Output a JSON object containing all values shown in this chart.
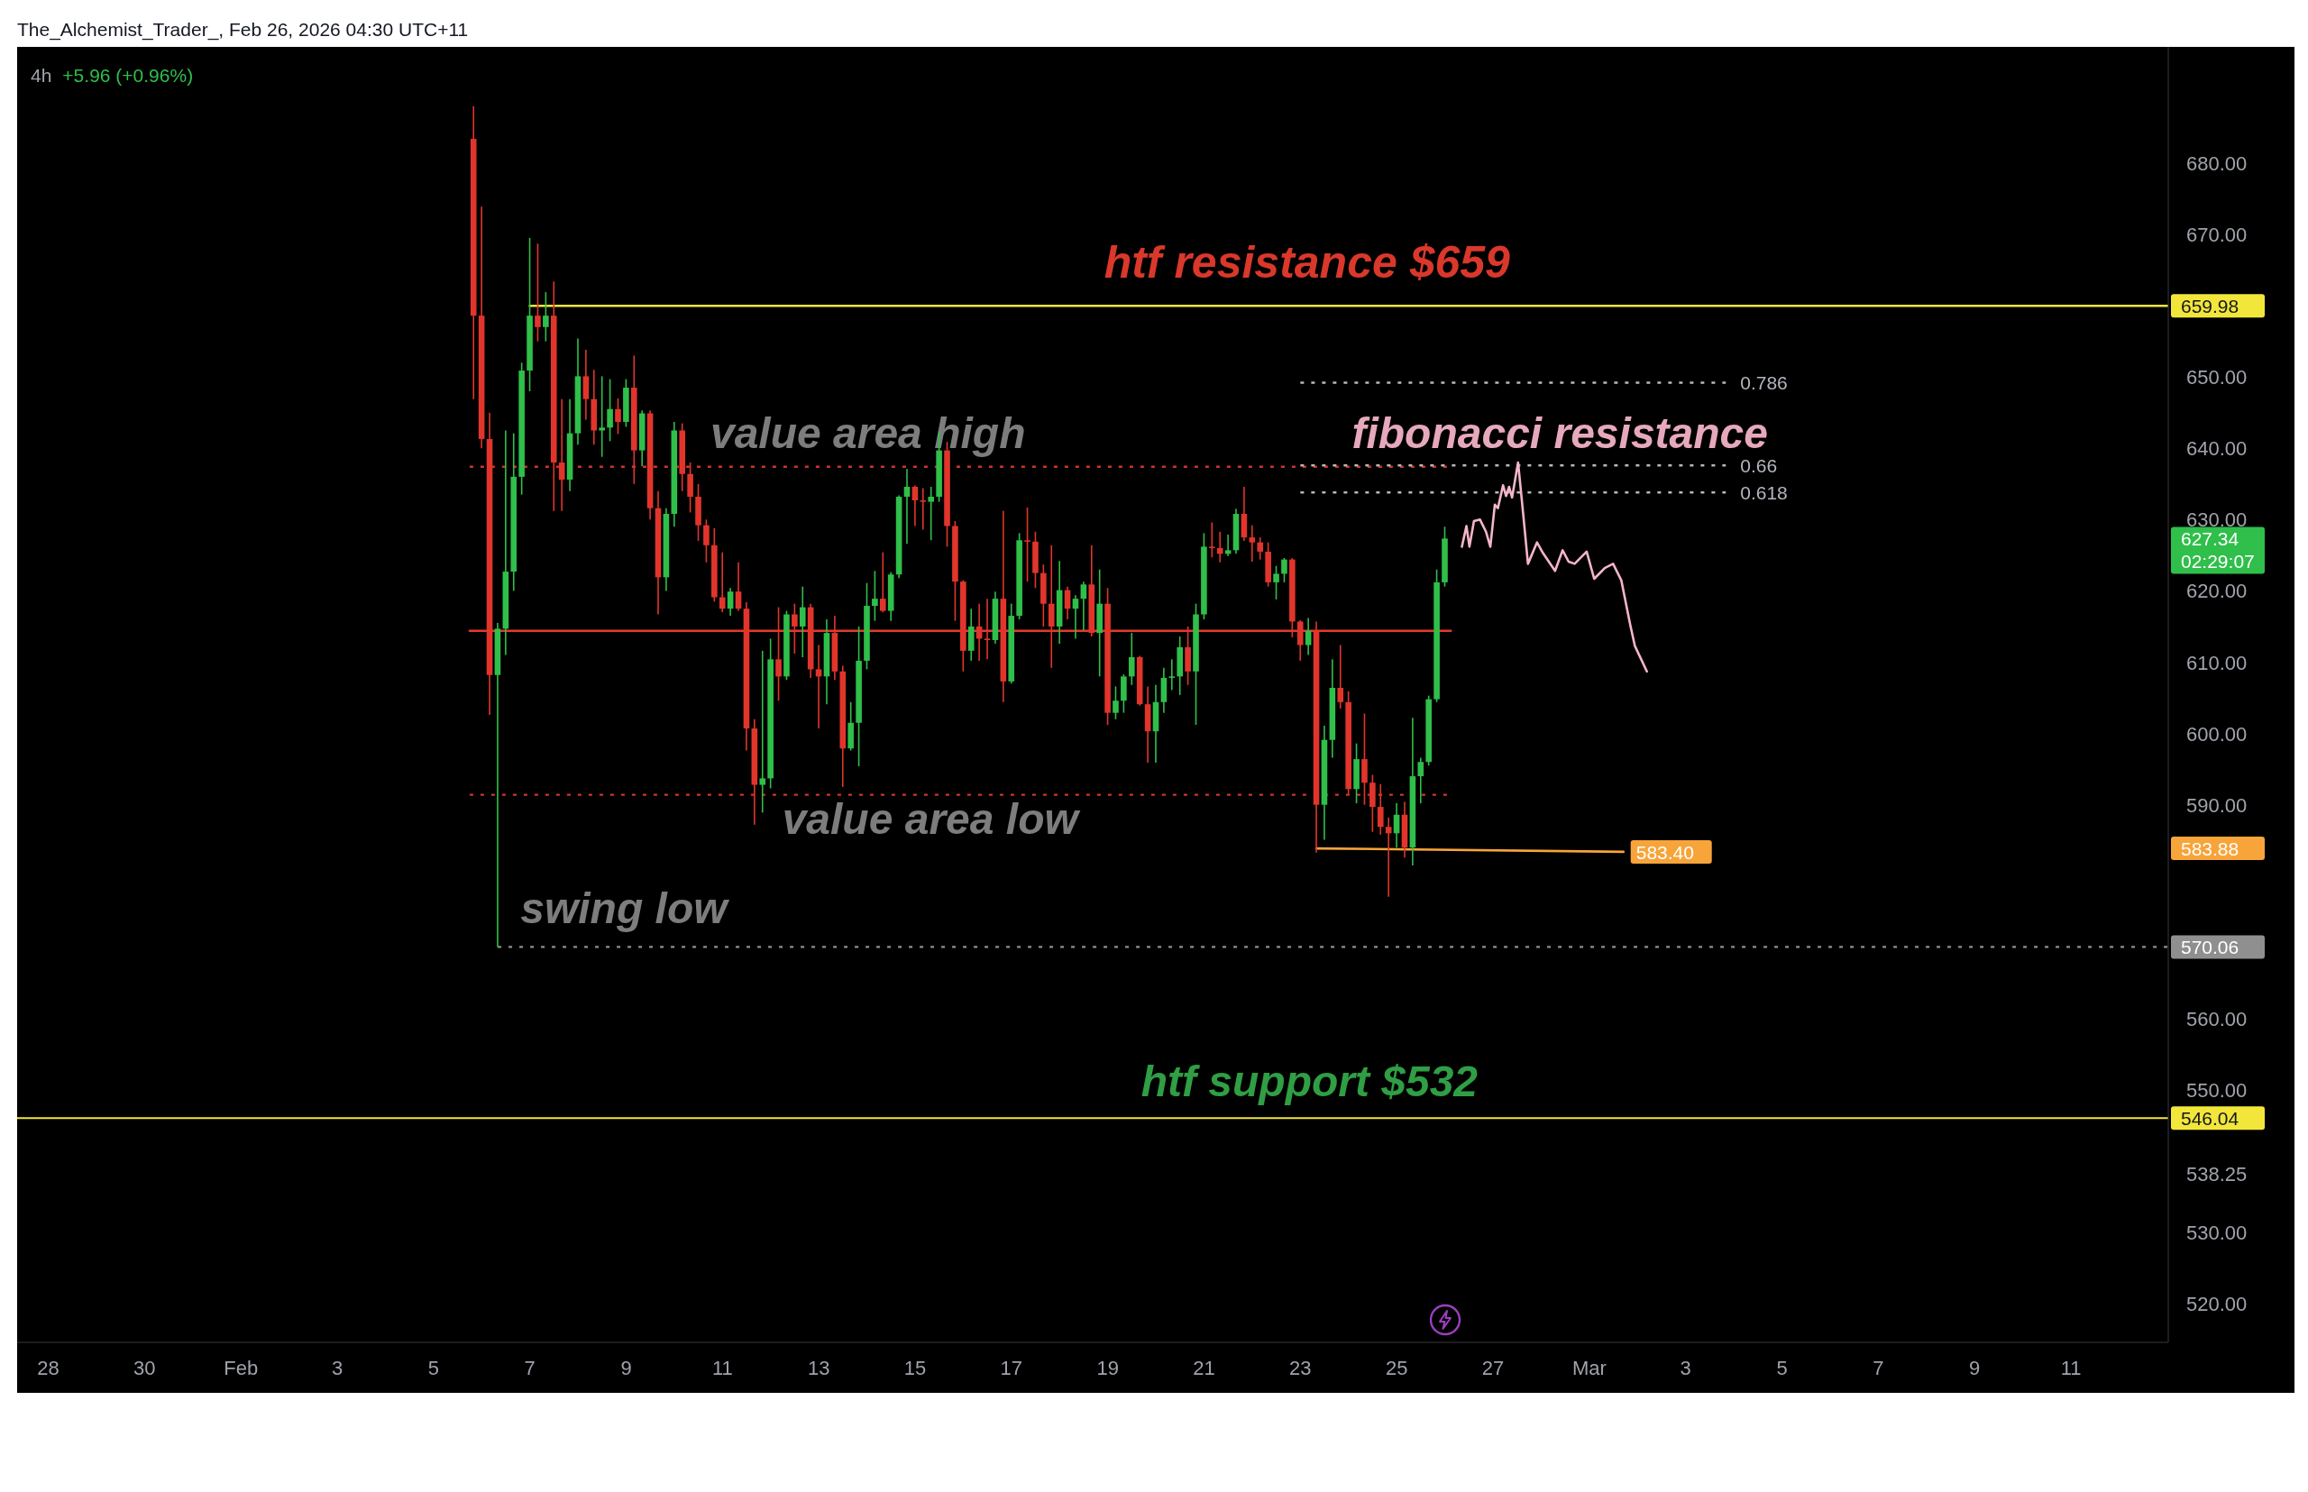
{
  "chart_data": {
    "type": "candlestick",
    "subtitle": "4h",
    "xlim": [
      "2026-01-27T08:30",
      "2026-03-13T00:30"
    ],
    "xticks": [
      {
        "value": "2026-01-28",
        "label": "28"
      },
      {
        "value": "2026-01-30",
        "label": "30"
      },
      {
        "value": "2026-02-01",
        "label": "Feb"
      },
      {
        "value": "2026-02-03",
        "label": "3"
      },
      {
        "value": "2026-02-05",
        "label": "5"
      },
      {
        "value": "2026-02-07",
        "label": "7"
      },
      {
        "value": "2026-02-09",
        "label": "9"
      },
      {
        "value": "2026-02-11",
        "label": "11"
      },
      {
        "value": "2026-02-13",
        "label": "13"
      },
      {
        "value": "2026-02-15",
        "label": "15"
      },
      {
        "value": "2026-02-17",
        "label": "17"
      },
      {
        "value": "2026-02-19",
        "label": "19"
      },
      {
        "value": "2026-02-21",
        "label": "21"
      },
      {
        "value": "2026-02-23",
        "label": "23"
      },
      {
        "value": "2026-02-25",
        "label": "25"
      },
      {
        "value": "2026-02-27",
        "label": "27"
      },
      {
        "value": "2026-03-01",
        "label": "Mar"
      },
      {
        "value": "2026-03-03",
        "label": "3"
      },
      {
        "value": "2026-03-05",
        "label": "5"
      },
      {
        "value": "2026-03-07",
        "label": "7"
      },
      {
        "value": "2026-03-09",
        "label": "9"
      },
      {
        "value": "2026-03-11",
        "label": "11"
      }
    ],
    "ylim": [
      514.6,
      696.3
    ],
    "yticks": [
      {
        "value": 520,
        "label": "520.00"
      },
      {
        "value": 530,
        "label": "530.00"
      },
      538.25,
      {
        "value": 550,
        "label": "550.00"
      },
      {
        "value": 560,
        "label": "560.00"
      },
      570.06,
      583.88,
      {
        "value": 590,
        "label": "590.00"
      },
      {
        "value": 600,
        "label": "600.00"
      },
      {
        "value": 610,
        "label": "610.00"
      },
      {
        "value": 620,
        "label": "620.00"
      },
      627.34,
      {
        "value": 630,
        "label": "630.00"
      },
      {
        "value": 640,
        "label": "640.00"
      },
      {
        "value": 650,
        "label": "650.00"
      },
      659.98,
      {
        "value": 670,
        "label": "670.00"
      },
      {
        "value": 680,
        "label": "680.00"
      }
    ],
    "x": [
      "2026-02-05T20:00",
      "2026-02-06T00:00",
      "2026-02-06T04:00",
      "2026-02-06T08:00",
      "2026-02-06T12:00",
      "2026-02-06T16:00",
      "2026-02-06T20:00",
      "2026-02-07T00:00",
      "2026-02-07T04:00",
      "2026-02-07T08:00",
      "2026-02-07T12:00",
      "2026-02-07T16:00",
      "2026-02-07T20:00",
      "2026-02-08T00:00",
      "2026-02-08T04:00",
      "2026-02-08T08:00",
      "2026-02-08T12:00",
      "2026-02-08T16:00",
      "2026-02-08T20:00",
      "2026-02-09T00:00",
      "2026-02-09T04:00",
      "2026-02-09T08:00",
      "2026-02-09T12:00",
      "2026-02-09T16:00",
      "2026-02-09T20:00",
      "2026-02-10T00:00",
      "2026-02-10T04:00",
      "2026-02-10T08:00",
      "2026-02-10T12:00",
      "2026-02-10T16:00",
      "2026-02-10T20:00",
      "2026-02-11T00:00",
      "2026-02-11T04:00",
      "2026-02-11T08:00",
      "2026-02-11T12:00",
      "2026-02-11T16:00",
      "2026-02-11T20:00",
      "2026-02-12T00:00",
      "2026-02-12T04:00",
      "2026-02-12T08:00",
      "2026-02-12T12:00",
      "2026-02-12T16:00",
      "2026-02-12T20:00",
      "2026-02-13T00:00",
      "2026-02-13T04:00",
      "2026-02-13T08:00",
      "2026-02-13T12:00",
      "2026-02-13T16:00",
      "2026-02-13T20:00",
      "2026-02-14T00:00",
      "2026-02-14T04:00",
      "2026-02-14T08:00",
      "2026-02-14T12:00",
      "2026-02-14T16:00",
      "2026-02-14T20:00",
      "2026-02-15T00:00",
      "2026-02-15T04:00",
      "2026-02-15T08:00",
      "2026-02-15T12:00",
      "2026-02-15T16:00",
      "2026-02-15T20:00",
      "2026-02-16T00:00",
      "2026-02-16T04:00",
      "2026-02-16T08:00",
      "2026-02-16T12:00",
      "2026-02-16T16:00",
      "2026-02-16T20:00",
      "2026-02-17T00:00",
      "2026-02-17T04:00",
      "2026-02-17T08:00",
      "2026-02-17T12:00",
      "2026-02-17T16:00",
      "2026-02-17T20:00",
      "2026-02-18T00:00",
      "2026-02-18T04:00",
      "2026-02-18T08:00",
      "2026-02-18T12:00",
      "2026-02-18T16:00",
      "2026-02-18T20:00",
      "2026-02-19T00:00",
      "2026-02-19T04:00",
      "2026-02-19T08:00",
      "2026-02-19T12:00",
      "2026-02-19T16:00",
      "2026-02-19T20:00",
      "2026-02-20T00:00",
      "2026-02-20T04:00",
      "2026-02-20T08:00",
      "2026-02-20T12:00",
      "2026-02-20T16:00",
      "2026-02-20T20:00",
      "2026-02-21T00:00",
      "2026-02-21T04:00",
      "2026-02-21T08:00",
      "2026-02-21T12:00",
      "2026-02-21T16:00",
      "2026-02-21T20:00",
      "2026-02-22T00:00",
      "2026-02-22T04:00",
      "2026-02-22T08:00",
      "2026-02-22T12:00",
      "2026-02-22T16:00",
      "2026-02-22T20:00",
      "2026-02-23T00:00",
      "2026-02-23T04:00",
      "2026-02-23T08:00",
      "2026-02-23T12:00",
      "2026-02-23T16:00",
      "2026-02-23T20:00",
      "2026-02-24T00:00",
      "2026-02-24T04:00",
      "2026-02-24T08:00",
      "2026-02-24T12:00",
      "2026-02-24T16:00",
      "2026-02-24T20:00",
      "2026-02-25T00:00",
      "2026-02-25T04:00",
      "2026-02-25T08:00",
      "2026-02-25T12:00",
      "2026-02-25T16:00",
      "2026-02-25T20:00",
      "2026-02-26T00:00"
    ],
    "ohlc": [
      [
        683.4,
        688.0,
        646.9,
        658.6
      ],
      [
        658.6,
        673.9,
        640.0,
        641.3
      ],
      [
        641.3,
        645.0,
        602.6,
        608.2
      ],
      [
        608.2,
        615.5,
        570.06,
        614.7
      ],
      [
        614.7,
        642.5,
        611.0,
        622.7
      ],
      [
        622.7,
        642.1,
        620.0,
        636.0
      ],
      [
        636.0,
        652.0,
        633.5,
        650.9
      ],
      [
        650.9,
        669.5,
        648.0,
        658.6
      ],
      [
        658.6,
        668.7,
        655.0,
        657.0
      ],
      [
        657.0,
        661.9,
        655.0,
        658.6
      ],
      [
        658.6,
        663.4,
        631.2,
        638.0
      ],
      [
        638.0,
        646.9,
        631.2,
        635.6
      ],
      [
        635.6,
        646.9,
        634.0,
        642.1
      ],
      [
        642.1,
        655.4,
        640.5,
        650.1
      ],
      [
        650.1,
        653.8,
        644.0,
        646.9
      ],
      [
        646.9,
        651.0,
        640.5,
        642.5
      ],
      [
        642.5,
        650.1,
        638.8,
        642.9
      ],
      [
        642.9,
        649.7,
        641.0,
        645.5
      ],
      [
        645.5,
        647.0,
        642.0,
        643.7
      ],
      [
        643.7,
        649.7,
        643.0,
        648.5
      ],
      [
        648.5,
        653.0,
        635.0,
        639.7
      ],
      [
        639.7,
        645.3,
        637.5,
        644.9
      ],
      [
        644.9,
        645.3,
        630.0,
        631.6
      ],
      [
        631.6,
        634.0,
        616.7,
        621.9
      ],
      [
        621.9,
        631.6,
        620.0,
        630.8
      ],
      [
        630.8,
        643.7,
        629.0,
        642.5
      ],
      [
        642.5,
        643.5,
        634.0,
        636.4
      ],
      [
        636.4,
        638.0,
        631.0,
        633.2
      ],
      [
        633.2,
        635.0,
        627.0,
        629.2
      ],
      [
        629.2,
        630.0,
        624.0,
        626.4
      ],
      [
        626.4,
        628.8,
        618.5,
        619.1
      ],
      [
        619.1,
        625.4,
        617.0,
        617.5
      ],
      [
        617.5,
        620.4,
        616.5,
        619.9
      ],
      [
        619.9,
        624.0,
        617.2,
        617.5
      ],
      [
        617.5,
        618.4,
        597.6,
        600.7
      ],
      [
        600.7,
        602.0,
        587.2,
        592.8
      ],
      [
        592.8,
        611.6,
        588.9,
        593.7
      ],
      [
        593.7,
        613.3,
        592.3,
        610.4
      ],
      [
        610.4,
        617.7,
        604.6,
        608.0
      ],
      [
        608.0,
        617.2,
        607.5,
        616.7
      ],
      [
        616.7,
        618.2,
        611.2,
        615.0
      ],
      [
        615.0,
        620.6,
        610.7,
        617.7
      ],
      [
        617.7,
        618.2,
        607.8,
        609.0
      ],
      [
        609.0,
        612.4,
        600.7,
        608.0
      ],
      [
        608.0,
        616.0,
        604.1,
        614.1
      ],
      [
        614.1,
        616.5,
        607.5,
        608.7
      ],
      [
        608.7,
        609.5,
        592.5,
        597.9
      ],
      [
        597.9,
        604.4,
        597.6,
        601.5
      ],
      [
        601.5,
        615.0,
        595.4,
        610.2
      ],
      [
        610.2,
        621.1,
        609.0,
        617.9
      ],
      [
        617.9,
        622.8,
        615.8,
        618.9
      ],
      [
        618.9,
        625.4,
        617.0,
        617.2
      ],
      [
        617.2,
        622.6,
        615.8,
        622.3
      ],
      [
        622.3,
        633.4,
        621.8,
        633.2
      ],
      [
        633.2,
        637.1,
        626.6,
        634.6
      ],
      [
        634.6,
        634.8,
        629.1,
        632.7
      ],
      [
        632.7,
        634.4,
        628.6,
        632.5
      ],
      [
        632.5,
        634.6,
        627.1,
        633.2
      ],
      [
        633.2,
        642.4,
        632.5,
        639.7
      ],
      [
        639.7,
        640.9,
        626.2,
        629.1
      ],
      [
        629.1,
        629.8,
        615.8,
        621.3
      ],
      [
        621.3,
        621.5,
        608.7,
        611.6
      ],
      [
        611.6,
        617.5,
        610.2,
        615.0
      ],
      [
        615.0,
        618.2,
        610.2,
        613.3
      ],
      [
        613.3,
        618.9,
        610.4,
        613.1
      ],
      [
        613.1,
        619.9,
        612.6,
        618.9
      ],
      [
        618.9,
        631.2,
        604.4,
        607.3
      ],
      [
        607.3,
        618.2,
        607.0,
        616.5
      ],
      [
        616.5,
        628.1,
        616.0,
        627.1
      ],
      [
        627.1,
        631.7,
        621.3,
        626.9
      ],
      [
        626.9,
        628.3,
        620.4,
        622.5
      ],
      [
        622.5,
        623.7,
        615.0,
        618.2
      ],
      [
        618.2,
        626.4,
        609.2,
        615.0
      ],
      [
        615.0,
        624.2,
        612.6,
        620.1
      ],
      [
        620.1,
        620.6,
        616.0,
        617.5
      ],
      [
        617.5,
        619.4,
        613.3,
        618.9
      ],
      [
        618.9,
        621.3,
        614.5,
        620.9
      ],
      [
        620.9,
        626.4,
        613.6,
        614.1
      ],
      [
        614.1,
        623.0,
        608.0,
        618.2
      ],
      [
        618.2,
        620.4,
        601.2,
        602.9
      ],
      [
        602.9,
        606.6,
        602.0,
        604.6
      ],
      [
        604.6,
        608.3,
        602.9,
        608.0
      ],
      [
        608.0,
        614.1,
        606.8,
        610.7
      ],
      [
        610.7,
        610.9,
        603.9,
        604.1
      ],
      [
        604.1,
        606.6,
        595.9,
        600.3
      ],
      [
        600.3,
        606.8,
        595.9,
        604.4
      ],
      [
        604.4,
        609.2,
        602.9,
        607.8
      ],
      [
        607.8,
        610.4,
        606.1,
        608.0
      ],
      [
        608.0,
        613.6,
        605.4,
        612.1
      ],
      [
        612.1,
        615.0,
        606.8,
        608.7
      ],
      [
        608.7,
        618.2,
        601.2,
        616.7
      ],
      [
        616.7,
        628.1,
        616.0,
        626.2
      ],
      [
        626.2,
        629.6,
        624.7,
        626.0
      ],
      [
        626.0,
        628.3,
        624.0,
        625.2
      ],
      [
        625.2,
        627.9,
        624.9,
        625.7
      ],
      [
        625.7,
        631.5,
        625.2,
        630.8
      ],
      [
        630.8,
        634.6,
        627.0,
        627.5
      ],
      [
        627.5,
        629.2,
        624.1,
        626.8
      ],
      [
        626.8,
        627.5,
        624.4,
        625.5
      ],
      [
        625.5,
        626.8,
        620.6,
        621.2
      ],
      [
        621.2,
        623.5,
        618.8,
        622.4
      ],
      [
        622.4,
        624.6,
        621.2,
        624.4
      ],
      [
        624.4,
        624.6,
        613.5,
        615.7
      ],
      [
        615.7,
        615.9,
        610.2,
        612.4
      ],
      [
        612.4,
        616.2,
        611.0,
        614.4
      ],
      [
        614.4,
        615.7,
        583.3,
        590.0
      ],
      [
        590.0,
        601.1,
        585.1,
        599.1
      ],
      [
        599.1,
        610.4,
        596.6,
        606.4
      ],
      [
        606.4,
        612.4,
        603.5,
        604.4
      ],
      [
        604.4,
        605.9,
        591.5,
        592.2
      ],
      [
        592.2,
        598.6,
        590.2,
        596.4
      ],
      [
        596.4,
        602.8,
        590.0,
        593.1
      ],
      [
        593.1,
        594.2,
        586.2,
        589.7
      ],
      [
        589.7,
        592.9,
        585.8,
        586.9
      ],
      [
        586.9,
        588.2,
        577.1,
        586.0
      ],
      [
        586.0,
        590.2,
        584.0,
        588.6
      ],
      [
        588.6,
        590.4,
        582.6,
        584.0
      ],
      [
        584.0,
        602.2,
        581.5,
        594.0
      ],
      [
        594.0,
        596.6,
        590.2,
        596.0
      ],
      [
        596.0,
        605.3,
        595.5,
        604.8
      ],
      [
        604.8,
        623.0,
        604.4,
        621.2
      ],
      [
        621.2,
        629.0,
        620.6,
        627.34
      ]
    ],
    "colors": [
      "#e1352c",
      "#e1352c",
      "#e1352c",
      "#2fbf4a",
      "#2fbf4a",
      "#2fbf4a",
      "#2fbf4a",
      "#2fbf4a",
      "#e1352c",
      "#2fbf4a",
      "#e1352c",
      "#e1352c",
      "#2fbf4a",
      "#2fbf4a",
      "#e1352c",
      "#e1352c",
      "#2fbf4a",
      "#2fbf4a",
      "#e1352c",
      "#2fbf4a",
      "#e1352c",
      "#2fbf4a",
      "#e1352c",
      "#e1352c",
      "#2fbf4a",
      "#2fbf4a",
      "#e1352c",
      "#e1352c",
      "#e1352c",
      "#e1352c",
      "#e1352c",
      "#e1352c",
      "#2fbf4a",
      "#e1352c",
      "#e1352c",
      "#e1352c",
      "#2fbf4a",
      "#2fbf4a",
      "#e1352c",
      "#2fbf4a",
      "#e1352c",
      "#2fbf4a",
      "#e1352c",
      "#e1352c",
      "#2fbf4a",
      "#e1352c",
      "#e1352c",
      "#2fbf4a",
      "#2fbf4a",
      "#2fbf4a",
      "#2fbf4a",
      "#e1352c",
      "#2fbf4a",
      "#2fbf4a",
      "#2fbf4a",
      "#e1352c",
      "#e1352c",
      "#2fbf4a",
      "#2fbf4a",
      "#e1352c",
      "#e1352c",
      "#e1352c",
      "#2fbf4a",
      "#e1352c",
      "#e1352c",
      "#2fbf4a",
      "#e1352c",
      "#2fbf4a",
      "#2fbf4a",
      "#e1352c",
      "#e1352c",
      "#e1352c",
      "#e1352c",
      "#2fbf4a",
      "#e1352c",
      "#2fbf4a",
      "#2fbf4a",
      "#e1352c",
      "#2fbf4a",
      "#e1352c",
      "#2fbf4a",
      "#2fbf4a",
      "#2fbf4a",
      "#e1352c",
      "#e1352c",
      "#2fbf4a",
      "#2fbf4a",
      "#2fbf4a",
      "#2fbf4a",
      "#e1352c",
      "#2fbf4a",
      "#2fbf4a",
      "#e1352c",
      "#e1352c",
      "#2fbf4a",
      "#2fbf4a",
      "#e1352c",
      "#e1352c",
      "#e1352c",
      "#e1352c",
      "#2fbf4a",
      "#2fbf4a",
      "#e1352c",
      "#e1352c",
      "#2fbf4a",
      "#e1352c",
      "#2fbf4a",
      "#2fbf4a",
      "#e1352c",
      "#e1352c",
      "#2fbf4a",
      "#e1352c",
      "#e1352c",
      "#e1352c",
      "#e1352c",
      "#2fbf4a",
      "#e1352c",
      "#2fbf4a",
      "#2fbf4a",
      "#2fbf4a",
      "#2fbf4a",
      "#2fbf4a"
    ],
    "series": [
      {
        "type": "line",
        "color": "#f2e63a",
        "x": [
          "2026-02-07T00:00",
          "2026-03-13T00:30"
        ],
        "values": [
          659.98,
          659.98
        ]
      },
      {
        "type": "line",
        "color": "#8f8f8f",
        "line_style": "dotted",
        "x": [
          "2026-02-06T08:00",
          "2026-03-13T00:30"
        ],
        "values": [
          570.06,
          570.06
        ]
      },
      {
        "type": "line",
        "color": "#d0342c",
        "line_style": "dotted",
        "x": [
          "2026-02-05T18:00",
          "2026-02-26T03:00"
        ],
        "values": [
          637.4,
          637.4
        ]
      },
      {
        "type": "line",
        "color": "#e5392f",
        "x": [
          "2026-02-05T18:00",
          "2026-02-26T03:00"
        ],
        "values": [
          614.4,
          614.4
        ]
      },
      {
        "type": "line",
        "color": "#d0342c",
        "line_style": "dotted",
        "x": [
          "2026-02-05T18:00",
          "2026-02-26T03:00"
        ],
        "values": [
          591.4,
          591.4
        ]
      },
      {
        "type": "line",
        "color": "#b8b8b8",
        "line_style": "dotted",
        "x": [
          "2026-02-23T00:00",
          "2026-03-03T20:00"
        ],
        "values": [
          649.2,
          649.2
        ]
      },
      {
        "type": "line",
        "color": "#b8b8b8",
        "line_style": "dotted",
        "x": [
          "2026-02-23T00:00",
          "2026-03-03T20:00"
        ],
        "values": [
          637.6,
          637.6
        ]
      },
      {
        "type": "line",
        "color": "#b8b8b8",
        "line_style": "dotted",
        "x": [
          "2026-02-23T00:00",
          "2026-03-03T20:00"
        ],
        "values": [
          633.8,
          633.8
        ]
      },
      {
        "type": "line",
        "color": "#f7a43a",
        "x": [
          "2026-02-23T08:00",
          "2026-03-01T17:00"
        ],
        "values": [
          583.88,
          583.4
        ]
      },
      {
        "type": "line",
        "color": "#f4b6c8",
        "x": [
          "2026-02-26T08:30",
          "2026-02-26T10:45",
          "2026-02-26T12:15",
          "2026-02-26T14:30",
          "2026-02-26T17:30",
          "2026-02-26T20:30",
          "2026-02-26T22:40",
          "2026-02-27T00:55",
          "2026-02-27T02:25",
          "2026-02-27T05:00",
          "2026-02-27T06:30",
          "2026-02-27T08:00",
          "2026-02-27T09:30",
          "2026-02-27T12:30",
          "2026-02-27T15:10",
          "2026-02-27T17:25",
          "2026-02-27T21:55",
          "2026-02-28T00:55",
          "2026-02-28T06:55",
          "2026-02-28T10:40",
          "2026-02-28T13:40",
          "2026-02-28T16:40",
          "2026-02-28T22:40",
          "2026-03-01T02:25",
          "2026-03-01T07:40",
          "2026-03-01T11:50",
          "2026-03-01T15:55",
          "2026-03-01T20:25",
          "2026-03-01T22:40",
          "2026-03-02T04:40"
        ],
        "values": [
          626.2,
          629.1,
          626.2,
          629.8,
          630.0,
          628.3,
          626.2,
          632.1,
          631.6,
          634.8,
          633.3,
          634.6,
          633.1,
          638.0,
          630.4,
          623.8,
          626.8,
          625.3,
          622.8,
          625.7,
          624.1,
          623.8,
          625.5,
          621.7,
          623.2,
          623.8,
          621.5,
          615.2,
          612.3,
          608.7
        ]
      }
    ],
    "ref_lines": [
      {
        "axis": "y",
        "value": 546.04,
        "label": "546.04",
        "color": "#f2e63a"
      }
    ],
    "annotations": [
      "The_Alchemist_Trader_, Feb 26, 2026 04:30 UTC+11",
      "+5.96 (+0.96%)",
      "02:29:07",
      {
        "text": "htf resistance $659",
        "x": "2026-02-23T03:20",
        "y": 659.98
      },
      {
        "text": "value area high",
        "x": "2026-02-14T00:30",
        "y": 637.4
      },
      {
        "text": "fibonacci resistance",
        "x": "2026-02-28T09:20",
        "y": 637.6
      },
      {
        "text": "value area low",
        "x": "2026-02-15T07:30",
        "y": 591.4
      },
      {
        "text": "swing low",
        "x": "2026-02-08T22:50",
        "y": 570.06
      },
      {
        "text": "htf support $532",
        "x": "2026-02-23T04:30",
        "y": 546.04
      },
      {
        "text": "0.786",
        "x": "2026-03-03T20:00",
        "y": 649.2
      },
      {
        "text": "0.66",
        "x": "2026-03-03T20:00",
        "y": 637.6
      },
      {
        "text": "0.618",
        "x": "2026-03-03T20:00",
        "y": 633.8
      },
      {
        "text": "583.40",
        "x": "2026-03-01T17:00",
        "y": 583.4
      }
    ]
  }
}
